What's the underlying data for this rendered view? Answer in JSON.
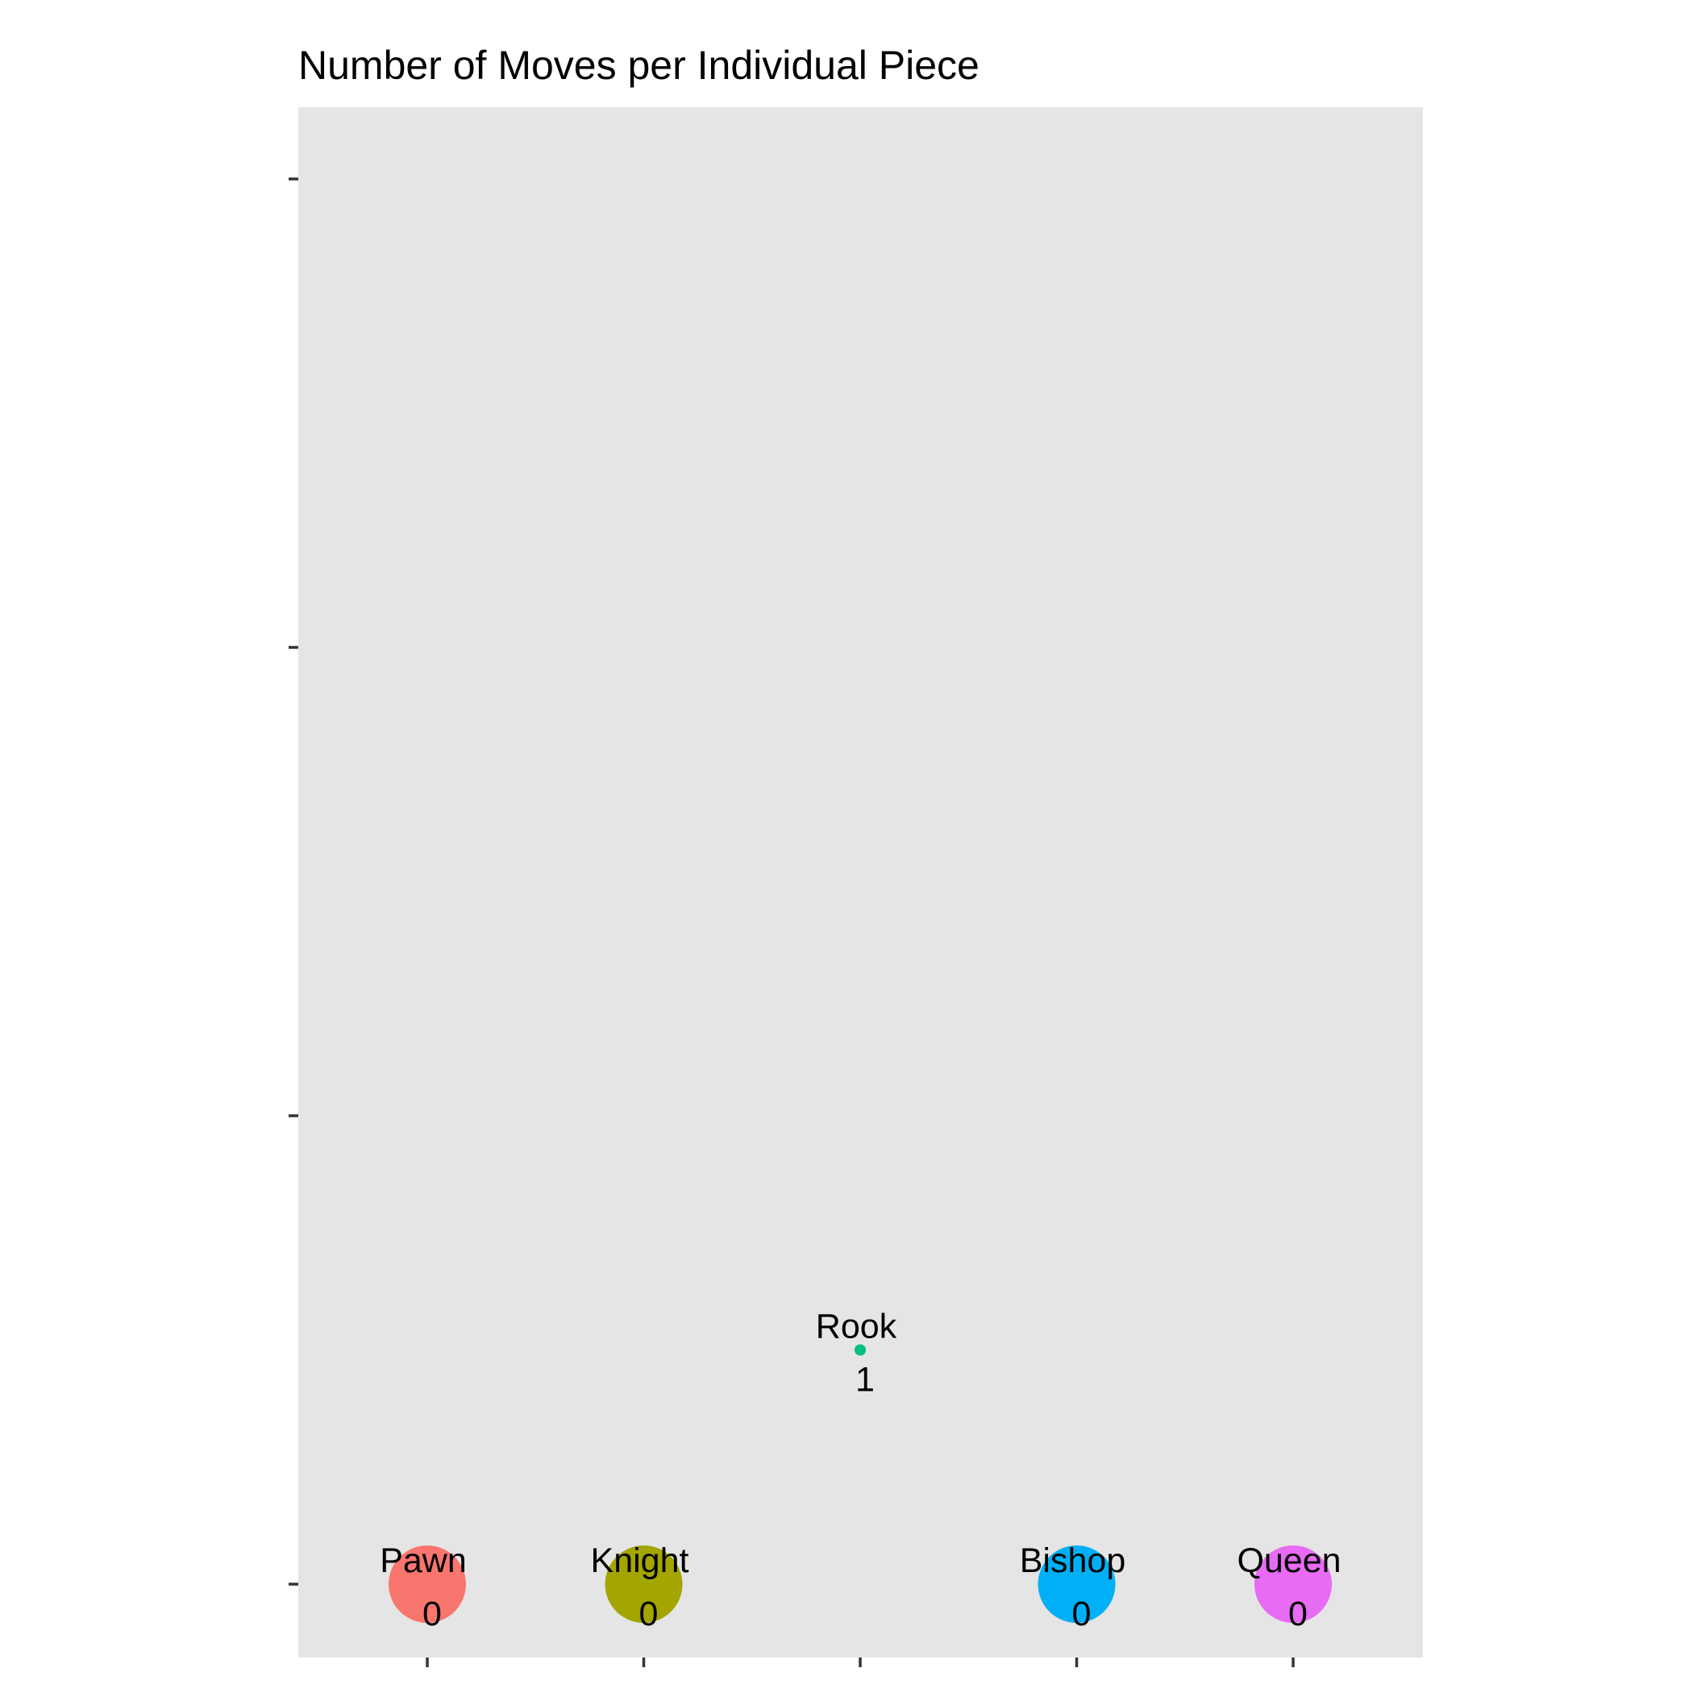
{
  "chart_data": {
    "type": "scatter",
    "title": "Number of Moves per Individual Piece",
    "xlabel": "",
    "ylabel": "",
    "grid": false,
    "legend": "none",
    "x_categories": [
      "Pawn",
      "Knight",
      "Rook",
      "Bishop",
      "Queen"
    ],
    "ylim": [
      0,
      3
    ],
    "y_ticks": [
      0,
      1,
      2,
      3
    ],
    "points": [
      {
        "piece": "Pawn",
        "y": 0,
        "value": 0,
        "value_label": "0",
        "color": "#F8766D",
        "size": "large"
      },
      {
        "piece": "Knight",
        "y": 0,
        "value": 0,
        "value_label": "0",
        "color": "#A3A500",
        "size": "large"
      },
      {
        "piece": "Rook",
        "y": 0.5,
        "value": 1,
        "value_label": "1",
        "color": "#00BF7D",
        "size": "small"
      },
      {
        "piece": "Bishop",
        "y": 0,
        "value": 0,
        "value_label": "0",
        "color": "#00B0F6",
        "size": "large"
      },
      {
        "piece": "Queen",
        "y": 0,
        "value": 0,
        "value_label": "0",
        "color": "#E76BF3",
        "size": "large"
      }
    ],
    "colors": {
      "panel_background": "#E5E5E5",
      "page_background": "#FFFFFF",
      "tick_color": "#333333",
      "text_color": "#000000"
    }
  }
}
